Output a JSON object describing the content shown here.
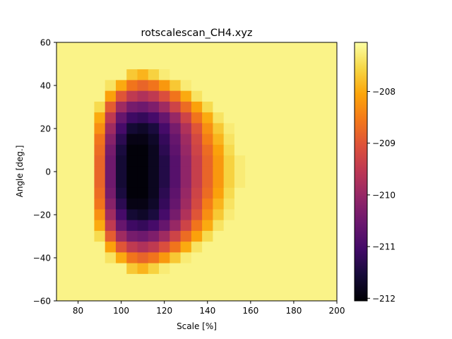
{
  "chart_data": {
    "type": "heatmap",
    "title": "rotscalescan_CH4.xyz",
    "xlabel": "Scale [%]",
    "ylabel": "Angle [deg.]",
    "xlim": [
      70,
      200
    ],
    "ylim": [
      -60,
      60
    ],
    "x_ticks": [
      80,
      100,
      120,
      140,
      160,
      180,
      200
    ],
    "y_ticks": [
      -60,
      -40,
      -20,
      0,
      20,
      40,
      60
    ],
    "x_tick_labels": [
      "80",
      "100",
      "120",
      "140",
      "160",
      "180",
      "200"
    ],
    "y_tick_labels": [
      "−60",
      "−40",
      "−20",
      "0",
      "20",
      "40",
      "60"
    ],
    "colormap": "inferno",
    "color_range": [
      -212.05,
      -207.05
    ],
    "colorbar_ticks": [
      -212,
      -211,
      -210,
      -209,
      -208
    ],
    "colorbar_tick_labels": [
      "−212",
      "−211",
      "−210",
      "−209",
      "−208"
    ],
    "background_value": -207.2,
    "grid": false,
    "x_centers": [
      90,
      95,
      100,
      105,
      110,
      115,
      120,
      125,
      130,
      135,
      140,
      145,
      150,
      155,
      160
    ],
    "y_centers": [
      50,
      45,
      40,
      35,
      30,
      25,
      20,
      15,
      10,
      5,
      0,
      -5,
      -10,
      -15,
      -20,
      -25,
      -30,
      -35,
      -40,
      -45,
      -50
    ],
    "z": [
      [
        -207.2,
        -207.2,
        -207.2,
        -207.2,
        -207.2,
        -207.2,
        -207.2,
        -207.2,
        -207.2,
        -207.2,
        -207.2,
        -207.2,
        -207.2,
        -207.2,
        -207.2
      ],
      [
        -207.2,
        -207.2,
        -207.2,
        -207.7,
        -207.9,
        -207.6,
        -207.3,
        -207.2,
        -207.2,
        -207.2,
        -207.2,
        -207.2,
        -207.2,
        -207.2,
        -207.2
      ],
      [
        -207.2,
        -207.4,
        -208.0,
        -208.6,
        -208.8,
        -208.6,
        -208.2,
        -207.7,
        -207.3,
        -207.2,
        -207.2,
        -207.2,
        -207.2,
        -207.2,
        -207.2
      ],
      [
        -207.2,
        -208.1,
        -209.0,
        -209.5,
        -209.7,
        -209.5,
        -209.1,
        -208.6,
        -208.0,
        -207.4,
        -207.2,
        -207.2,
        -207.2,
        -207.2,
        -207.2
      ],
      [
        -207.5,
        -208.9,
        -209.9,
        -210.4,
        -210.5,
        -210.3,
        -209.9,
        -209.3,
        -208.7,
        -208.1,
        -207.5,
        -207.2,
        -207.2,
        -207.2,
        -207.2
      ],
      [
        -208.0,
        -209.5,
        -210.6,
        -211.1,
        -211.2,
        -211.0,
        -210.6,
        -210.0,
        -209.3,
        -208.6,
        -208.0,
        -207.4,
        -207.2,
        -207.2,
        -207.2
      ],
      [
        -208.3,
        -209.9,
        -211.0,
        -211.6,
        -211.7,
        -211.5,
        -211.0,
        -210.4,
        -209.7,
        -209.0,
        -208.3,
        -207.7,
        -207.3,
        -207.2,
        -207.2
      ],
      [
        -208.6,
        -210.2,
        -211.3,
        -211.9,
        -211.9,
        -211.7,
        -211.2,
        -210.6,
        -209.9,
        -209.2,
        -208.5,
        -207.9,
        -207.4,
        -207.2,
        -207.2
      ],
      [
        -208.7,
        -210.4,
        -211.5,
        -212.0,
        -212.0,
        -211.8,
        -211.3,
        -210.7,
        -210.0,
        -209.3,
        -208.7,
        -208.1,
        -207.5,
        -207.2,
        -207.2
      ],
      [
        -208.8,
        -210.5,
        -211.6,
        -212.0,
        -212.0,
        -211.8,
        -211.4,
        -210.8,
        -210.1,
        -209.4,
        -208.8,
        -208.2,
        -207.6,
        -207.3,
        -207.2
      ],
      [
        -208.8,
        -210.5,
        -211.6,
        -212.0,
        -212.0,
        -211.8,
        -211.4,
        -210.8,
        -210.1,
        -209.4,
        -208.8,
        -208.2,
        -207.6,
        -207.3,
        -207.2
      ],
      [
        -208.8,
        -210.5,
        -211.6,
        -212.0,
        -212.0,
        -211.8,
        -211.4,
        -210.8,
        -210.1,
        -209.4,
        -208.8,
        -208.2,
        -207.6,
        -207.3,
        -207.2
      ],
      [
        -208.7,
        -210.4,
        -211.5,
        -212.0,
        -212.0,
        -211.8,
        -211.3,
        -210.7,
        -210.0,
        -209.3,
        -208.7,
        -208.1,
        -207.5,
        -207.2,
        -207.2
      ],
      [
        -208.6,
        -210.2,
        -211.3,
        -211.9,
        -211.9,
        -211.7,
        -211.2,
        -210.6,
        -209.9,
        -209.2,
        -208.5,
        -207.9,
        -207.4,
        -207.2,
        -207.2
      ],
      [
        -208.3,
        -209.9,
        -211.0,
        -211.6,
        -211.7,
        -211.5,
        -211.0,
        -210.4,
        -209.7,
        -209.0,
        -208.3,
        -207.7,
        -207.3,
        -207.2,
        -207.2
      ],
      [
        -208.0,
        -209.5,
        -210.6,
        -211.1,
        -211.2,
        -211.0,
        -210.6,
        -210.0,
        -209.3,
        -208.6,
        -208.0,
        -207.4,
        -207.2,
        -207.2,
        -207.2
      ],
      [
        -207.5,
        -208.9,
        -209.9,
        -210.4,
        -210.5,
        -210.3,
        -209.9,
        -209.3,
        -208.7,
        -208.1,
        -207.5,
        -207.2,
        -207.2,
        -207.2,
        -207.2
      ],
      [
        -207.2,
        -208.1,
        -209.0,
        -209.5,
        -209.7,
        -209.5,
        -209.1,
        -208.6,
        -208.0,
        -207.4,
        -207.2,
        -207.2,
        -207.2,
        -207.2,
        -207.2
      ],
      [
        -207.2,
        -207.4,
        -208.0,
        -208.6,
        -208.8,
        -208.6,
        -208.2,
        -207.7,
        -207.3,
        -207.2,
        -207.2,
        -207.2,
        -207.2,
        -207.2,
        -207.2
      ],
      [
        -207.2,
        -207.2,
        -207.2,
        -207.7,
        -207.9,
        -207.6,
        -207.3,
        -207.2,
        -207.2,
        -207.2,
        -207.2,
        -207.2,
        -207.2,
        -207.2,
        -207.2
      ],
      [
        -207.2,
        -207.2,
        -207.2,
        -207.2,
        -207.2,
        -207.2,
        -207.2,
        -207.2,
        -207.2,
        -207.2,
        -207.2,
        -207.2,
        -207.2,
        -207.2,
        -207.2
      ]
    ]
  }
}
